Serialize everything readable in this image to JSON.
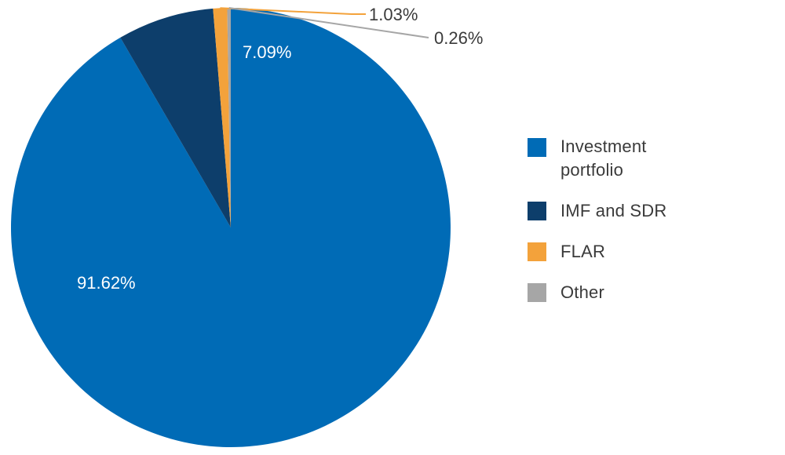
{
  "chart_data": {
    "type": "pie",
    "categories": [
      "Investment portfolio",
      "IMF and SDR",
      "FLAR",
      "Other"
    ],
    "values": [
      91.62,
      7.09,
      1.03,
      0.26
    ],
    "data_labels": [
      "91.62%",
      "7.09%",
      "1.03%",
      "0.26%"
    ],
    "colors": [
      "#006BB6",
      "#0D3E6B",
      "#F3A23B",
      "#A6A6A6"
    ],
    "start_angle_deg": 0,
    "direction": "clockwise",
    "legend_placement": "right"
  }
}
